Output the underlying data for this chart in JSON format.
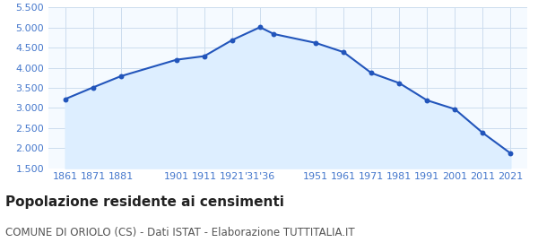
{
  "years": [
    1861,
    1871,
    1881,
    1901,
    1911,
    1921,
    1931,
    1936,
    1951,
    1961,
    1971,
    1981,
    1991,
    2001,
    2011,
    2021
  ],
  "population": [
    3220,
    3510,
    3790,
    4200,
    4290,
    4690,
    5010,
    4840,
    4620,
    4390,
    3870,
    3620,
    3190,
    2970,
    2380,
    1870
  ],
  "x_labels": [
    "1861",
    "1871",
    "1881",
    "",
    "1901",
    "1911",
    "1921",
    "'31'36",
    "",
    "1951",
    "1961",
    "1971",
    "1981",
    "1991",
    "2001",
    "2011",
    "2021"
  ],
  "line_color": "#2255bb",
  "fill_color": "#ddeeff",
  "marker_color": "#2255bb",
  "grid_color": "#ccddee",
  "background_color": "#f5faff",
  "ylim": [
    1500,
    5500
  ],
  "yticks": [
    1500,
    2000,
    2500,
    3000,
    3500,
    4000,
    4500,
    5000,
    5500
  ],
  "title": "Popolazione residente ai censimenti",
  "subtitle": "COMUNE DI ORIOLO (CS) - Dati ISTAT - Elaborazione TUTTITALIA.IT",
  "title_fontsize": 11,
  "subtitle_fontsize": 8.5,
  "axis_label_color": "#4477cc",
  "axis_label_fontsize": 8
}
